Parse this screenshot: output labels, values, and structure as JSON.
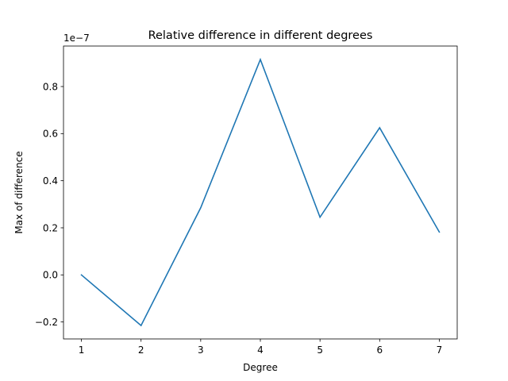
{
  "chart_data": {
    "type": "line",
    "title": "Relative difference in different  degrees",
    "xlabel": "Degree",
    "ylabel": "Max of difference",
    "y_scale_label": "1e−7",
    "x": [
      1,
      2,
      3,
      4,
      5,
      6,
      7
    ],
    "series": [
      {
        "values": [
          0.0,
          -2.15e-08,
          2.85e-08,
          9.15e-08,
          2.45e-08,
          6.25e-08,
          1.82e-08
        ],
        "color": "#1f77b4"
      }
    ],
    "xlim": [
      0.7,
      7.3
    ],
    "ylim": [
      -2.72e-08,
      9.72e-08
    ],
    "x_ticks": [
      1,
      2,
      3,
      4,
      5,
      6,
      7
    ],
    "x_tick_labels": [
      "1",
      "2",
      "3",
      "4",
      "5",
      "6",
      "7"
    ],
    "y_ticks": [
      -2e-08,
      0,
      2e-08,
      4e-08,
      6e-08,
      8e-08
    ],
    "y_tick_labels": [
      "−0.2",
      "0.0",
      "0.2",
      "0.4",
      "0.6",
      "0.8"
    ],
    "grid": false,
    "legend": "none"
  }
}
